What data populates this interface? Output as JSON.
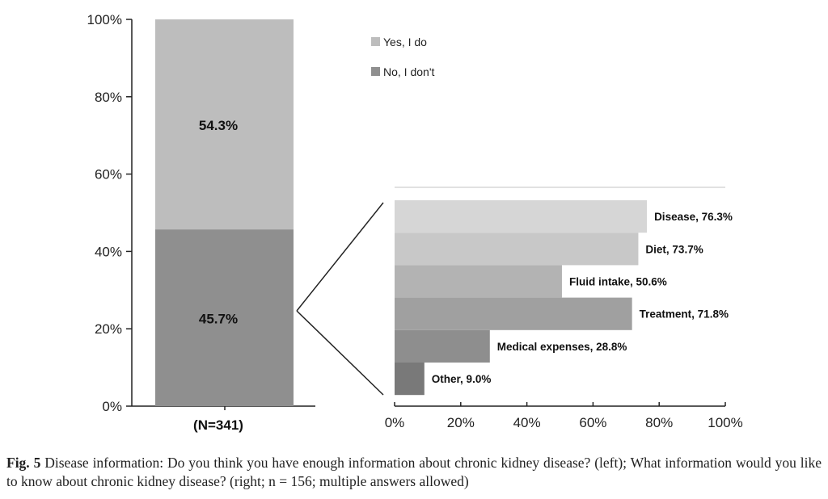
{
  "chart_data": [
    {
      "type": "bar",
      "stacked": true,
      "categories": [
        "(N=341)"
      ],
      "series": [
        {
          "name": "No, I don't",
          "values": [
            45.7
          ],
          "label": "45.7%",
          "color": "#8f8f8f"
        },
        {
          "name": "Yes, I do",
          "values": [
            54.3
          ],
          "label": "54.3%",
          "color": "#bdbdbd"
        }
      ],
      "ylim": [
        0,
        100
      ],
      "yticks": [
        "0%",
        "20%",
        "40%",
        "60%",
        "80%",
        "100%"
      ],
      "legend": "top-right",
      "grid": false
    },
    {
      "type": "bar",
      "orientation": "horizontal",
      "categories": [
        "Disease",
        "Diet",
        "Fluid intake",
        "Treatment",
        "Medical expenses",
        "Other"
      ],
      "values": [
        76.3,
        73.7,
        50.6,
        71.8,
        28.8,
        9.0
      ],
      "labels": [
        "Disease, 76.3%",
        "Diet, 73.7%",
        "Fluid intake, 50.6%",
        "Treatment, 71.8%",
        "Medical expenses, 28.8%",
        "Other, 9.0%"
      ],
      "colors": [
        "#d6d6d6",
        "#c8c8c8",
        "#b3b3b3",
        "#a0a0a0",
        "#8e8e8e",
        "#797979"
      ],
      "xlim": [
        0,
        100
      ],
      "xticks": [
        "0%",
        "20%",
        "40%",
        "60%",
        "80%",
        "100%"
      ],
      "grid": false
    }
  ],
  "caption": {
    "label": "Fig. 5",
    "text": "Disease information: Do you think you have enough information about chronic kidney disease? (left); What information would you like to know about chronic kidney disease? (right; n = 156; multiple answers allowed)"
  }
}
